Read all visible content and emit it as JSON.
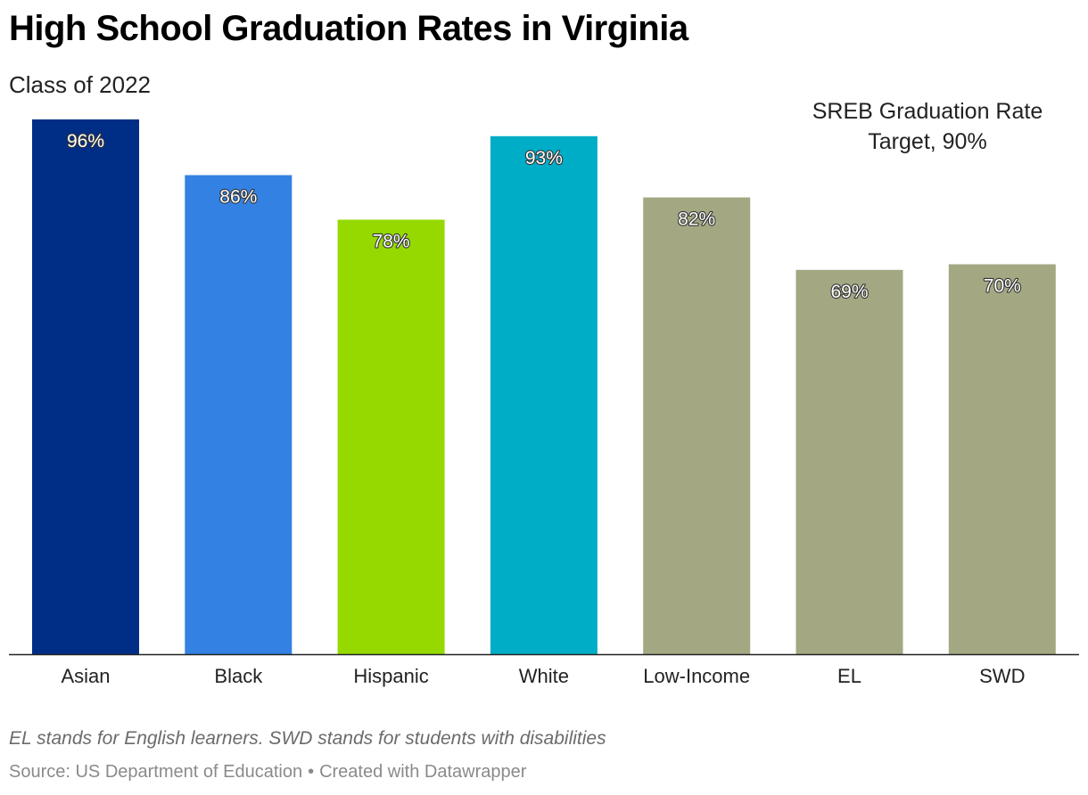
{
  "header": {
    "title": "High School Graduation Rates in Virginia",
    "subtitle": "Class of 2022"
  },
  "chart_data": {
    "type": "bar",
    "title": "High School Graduation Rates in Virginia",
    "subtitle": "Class of 2022",
    "xlabel": "",
    "ylabel": "",
    "ylim": [
      0,
      100
    ],
    "grid": false,
    "value_suffix": "%",
    "categories": [
      "Asian",
      "Black",
      "Hispanic",
      "White",
      "Low-Income",
      "EL",
      "SWD"
    ],
    "values": [
      96,
      86,
      78,
      93,
      82,
      69,
      70
    ],
    "value_labels": [
      "96%",
      "86%",
      "78%",
      "93%",
      "82%",
      "69%",
      "70%"
    ],
    "colors": [
      "#002e86",
      "#3381e2",
      "#95d900",
      "#00adc7",
      "#a3a883",
      "#a3a883",
      "#a3a883"
    ],
    "annotation": {
      "lines": [
        "SREB Graduation Rate",
        "Target, 90%"
      ],
      "placement": "top-right"
    }
  },
  "footer": {
    "notes": "EL stands for English learners. SWD stands for students with disabilities",
    "source": "Source: US Department of Education",
    "separator": "•",
    "credit": "Created with Datawrapper"
  }
}
